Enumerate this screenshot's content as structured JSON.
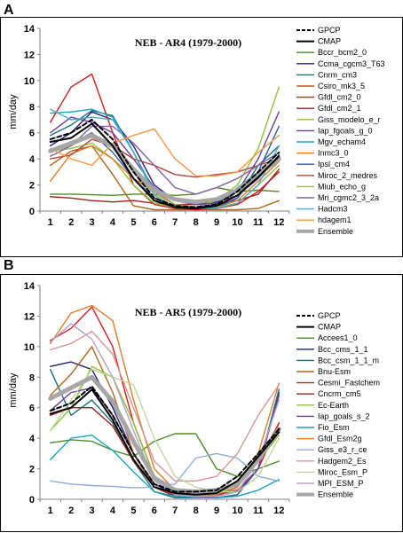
{
  "chart_data": [
    {
      "panel": "A",
      "type": "line",
      "title": "NEB - AR4 (1979-2000)",
      "xlabel": "",
      "ylabel": "mm/day",
      "categories": [
        "1",
        "2",
        "3",
        "4",
        "5",
        "6",
        "7",
        "8",
        "9",
        "10",
        "11",
        "12"
      ],
      "ylim": [
        0,
        14
      ],
      "yticks": [
        0,
        2,
        4,
        6,
        8,
        10,
        12,
        14
      ],
      "grid": false,
      "legend": "right",
      "series": [
        {
          "name": "GPCP",
          "color": "#000000",
          "dash": true,
          "width": 2,
          "values": [
            5.5,
            6.0,
            7.0,
            5.5,
            3.0,
            1.0,
            0.4,
            0.3,
            0.5,
            1.5,
            3.0,
            4.5
          ]
        },
        {
          "name": "CMAP",
          "color": "#000000",
          "width": 2,
          "values": [
            5.3,
            5.6,
            6.7,
            5.0,
            2.5,
            0.8,
            0.3,
            0.2,
            0.4,
            1.2,
            2.6,
            4.2
          ]
        },
        {
          "name": "Bccr_bcm2_0",
          "color": "#4e8a21",
          "width": 1.4,
          "values": [
            1.3,
            1.3,
            1.25,
            1.2,
            1.3,
            1.3,
            1.2,
            1.3,
            1.8,
            1.5,
            1.6,
            1.5
          ]
        },
        {
          "name": "Ccma_cgcm3_T63",
          "color": "#1f1f7a",
          "width": 1.4,
          "values": [
            5.0,
            6.0,
            7.6,
            7.0,
            5.0,
            2.0,
            0.8,
            0.5,
            0.7,
            1.2,
            2.5,
            4.3
          ]
        },
        {
          "name": "Cnrm_cm3",
          "color": "#1f6f7a",
          "width": 1.4,
          "values": [
            5.8,
            6.6,
            7.7,
            7.3,
            4.5,
            1.5,
            0.5,
            0.2,
            0.3,
            1.0,
            3.5,
            5.0
          ]
        },
        {
          "name": "Csiro_mk3_5",
          "color": "#b0651f",
          "width": 1.4,
          "values": [
            3.5,
            4.6,
            5.0,
            2.8,
            0.4,
            0.1,
            0.1,
            0.1,
            0.1,
            0.1,
            0.2,
            0.8
          ]
        },
        {
          "name": "Gfdl_cm2_0",
          "color": "#d61c1c",
          "width": 1.4,
          "values": [
            6.8,
            9.5,
            10.5,
            6.0,
            2.0,
            0.5,
            0.2,
            0.1,
            0.2,
            0.5,
            1.5,
            3.0
          ]
        },
        {
          "name": "Gfdl_cm2_1",
          "color": "#a02020",
          "width": 1.4,
          "values": [
            1.1,
            1.0,
            0.8,
            0.7,
            0.8,
            0.6,
            0.5,
            0.5,
            0.6,
            0.8,
            1.3,
            3.2
          ]
        },
        {
          "name": "Giss_modelo_e_r",
          "color": "#8ec23b",
          "width": 1.4,
          "values": [
            4.6,
            4.8,
            5.2,
            4.0,
            2.0,
            0.6,
            0.3,
            0.3,
            0.8,
            2.0,
            4.8,
            9.5
          ]
        },
        {
          "name": "Iap_fgoals_g_0",
          "color": "#6c3b9e",
          "width": 1.4,
          "values": [
            6.0,
            7.2,
            6.8,
            6.0,
            4.0,
            1.8,
            0.8,
            0.5,
            0.6,
            1.5,
            4.0,
            7.6
          ]
        },
        {
          "name": "Mgv_echam4",
          "color": "#1aa3c4",
          "width": 1.4,
          "values": [
            7.5,
            7.6,
            7.8,
            7.2,
            4.5,
            1.5,
            0.5,
            0.3,
            0.5,
            1.8,
            3.0,
            4.0
          ]
        },
        {
          "name": "Inmc3_0",
          "color": "#e07b2a",
          "width": 1.4,
          "values": [
            2.3,
            4.4,
            5.0,
            4.0,
            2.5,
            1.5,
            0.5,
            0.3,
            0.3,
            0.8,
            2.3,
            3.8
          ]
        },
        {
          "name": "Ipsl_cm4",
          "color": "#2a5aa8",
          "width": 1.4,
          "values": [
            4.5,
            5.2,
            6.0,
            4.5,
            2.5,
            1.0,
            0.3,
            0.2,
            0.3,
            1.0,
            3.0,
            6.5
          ]
        },
        {
          "name": "Miroc_2_medres",
          "color": "#b5443f",
          "width": 1.4,
          "values": [
            4.0,
            4.3,
            5.5,
            5.0,
            4.0,
            3.5,
            2.8,
            2.6,
            2.8,
            3.0,
            3.5,
            4.0
          ]
        },
        {
          "name": "Miub_echo_g",
          "color": "#9bbb59",
          "width": 1.4,
          "values": [
            4.5,
            5.0,
            5.8,
            5.0,
            3.0,
            1.3,
            0.5,
            0.3,
            0.3,
            0.6,
            2.0,
            3.5
          ]
        },
        {
          "name": "Mri_cgmc2_3_2a",
          "color": "#8064a2",
          "width": 1.4,
          "values": [
            4.2,
            5.0,
            6.5,
            6.5,
            5.2,
            3.5,
            1.8,
            1.3,
            1.8,
            2.5,
            3.5,
            4.5
          ]
        },
        {
          "name": "Hadcm3",
          "color": "#4bacc6",
          "width": 1.4,
          "values": [
            7.8,
            7.0,
            7.2,
            7.0,
            4.5,
            1.2,
            0.3,
            0.2,
            0.2,
            0.6,
            2.0,
            5.0
          ]
        },
        {
          "name": "hdagem1",
          "color": "#f79646",
          "width": 1.4,
          "values": [
            4.8,
            4.0,
            3.5,
            5.2,
            5.8,
            6.3,
            4.0,
            2.7,
            2.7,
            3.0,
            4.5,
            5.8
          ]
        },
        {
          "name": "Ensemble",
          "color": "#a6a6a6",
          "width": 5,
          "values": [
            4.6,
            5.2,
            5.8,
            5.0,
            3.2,
            1.6,
            0.9,
            0.7,
            0.9,
            1.6,
            2.8,
            4.0
          ]
        }
      ]
    },
    {
      "panel": "B",
      "type": "line",
      "title": "NEB - AR5 (1979-2000)",
      "xlabel": "",
      "ylabel": "mm/day",
      "categories": [
        "1",
        "2",
        "3",
        "4",
        "5",
        "6",
        "7",
        "8",
        "9",
        "10",
        "11",
        "12"
      ],
      "ylim": [
        0,
        14
      ],
      "yticks": [
        0,
        2,
        4,
        6,
        8,
        10,
        12,
        14
      ],
      "grid": false,
      "legend": "right",
      "series": [
        {
          "name": "GPCP",
          "color": "#000000",
          "dash": true,
          "width": 2,
          "values": [
            5.8,
            6.3,
            7.4,
            5.5,
            3.0,
            1.0,
            0.5,
            0.5,
            0.6,
            1.5,
            3.0,
            4.6
          ]
        },
        {
          "name": "CMAP",
          "color": "#000000",
          "width": 2,
          "values": [
            5.6,
            6.0,
            7.2,
            5.2,
            2.6,
            0.8,
            0.4,
            0.3,
            0.4,
            1.2,
            2.8,
            4.4
          ]
        },
        {
          "name": "Accees1_0",
          "color": "#4e8a21",
          "width": 1.4,
          "values": [
            3.7,
            3.9,
            3.8,
            3.2,
            2.8,
            3.8,
            4.3,
            4.3,
            2.0,
            1.5,
            2.0,
            2.5
          ]
        },
        {
          "name": "Bcc_cms_1_1",
          "color": "#1f1f7a",
          "width": 1.4,
          "values": [
            8.7,
            9.0,
            8.5,
            6.0,
            3.0,
            0.8,
            0.2,
            0.1,
            0.1,
            0.3,
            2.0,
            7.0
          ]
        },
        {
          "name": "Bcc_csm_1_1_m",
          "color": "#1f6f7a",
          "width": 1.4,
          "values": [
            8.5,
            5.5,
            6.5,
            5.0,
            2.5,
            0.5,
            0.1,
            0.1,
            0.1,
            0.3,
            2.0,
            7.2
          ]
        },
        {
          "name": "Bnu-Esm",
          "color": "#b0651f",
          "width": 1.4,
          "values": [
            6.8,
            8.2,
            10.0,
            7.0,
            3.0,
            0.8,
            0.3,
            0.2,
            0.3,
            0.8,
            2.5,
            5.0
          ]
        },
        {
          "name": "Cesmi_Fastchem",
          "color": "#d61c1c",
          "width": 1.4,
          "values": [
            10.4,
            11.2,
            12.6,
            10.0,
            5.0,
            1.5,
            0.5,
            0.3,
            0.3,
            0.6,
            2.0,
            5.0
          ]
        },
        {
          "name": "Cncrm_cm5",
          "color": "#a02020",
          "width": 1.4,
          "values": [
            5.5,
            6.0,
            6.0,
            4.8,
            2.5,
            0.8,
            0.2,
            0.1,
            0.2,
            0.8,
            3.0,
            4.5
          ]
        },
        {
          "name": "Ec-Earth",
          "color": "#8ec23b",
          "width": 1.4,
          "values": [
            4.5,
            6.0,
            8.7,
            8.0,
            5.0,
            1.5,
            0.5,
            0.2,
            0.3,
            1.0,
            2.5,
            4.2
          ]
        },
        {
          "name": "Iap_goals_s_2",
          "color": "#6c3b9e",
          "width": 1.4,
          "values": [
            5.8,
            7.0,
            7.3,
            5.5,
            3.0,
            1.0,
            0.3,
            0.2,
            0.2,
            0.5,
            2.0,
            6.8
          ]
        },
        {
          "name": "Fio_Esm",
          "color": "#1aa3c4",
          "width": 1.4,
          "values": [
            2.6,
            4.0,
            4.2,
            3.2,
            1.8,
            0.5,
            0.2,
            0.1,
            0.1,
            0.2,
            0.6,
            1.3
          ]
        },
        {
          "name": "Gfdl_Esm2g",
          "color": "#e07b2a",
          "width": 1.4,
          "values": [
            10.2,
            12.2,
            12.7,
            11.7,
            6.5,
            2.0,
            0.6,
            0.3,
            0.3,
            0.8,
            3.0,
            7.6
          ]
        },
        {
          "name": "Giss_e3_r_ce",
          "color": "#8ea9db",
          "width": 1.4,
          "values": [
            1.2,
            1.0,
            0.9,
            0.85,
            0.75,
            0.8,
            1.0,
            2.7,
            3.0,
            2.7,
            1.5,
            1.2
          ]
        },
        {
          "name": "Hadgem2_Es",
          "color": "#d99694",
          "width": 1.4,
          "values": [
            9.8,
            10.2,
            11.0,
            9.5,
            6.0,
            2.5,
            1.2,
            1.2,
            1.5,
            3.0,
            5.5,
            7.5
          ]
        },
        {
          "name": "Miroc_Esm_P",
          "color": "#c3d69b",
          "width": 1.4,
          "values": [
            4.5,
            6.5,
            8.5,
            8.0,
            7.5,
            4.0,
            1.5,
            0.8,
            0.5,
            0.5,
            1.5,
            4.0
          ]
        },
        {
          "name": "MPI_ESM_P",
          "color": "#b3a2c7",
          "width": 1.4,
          "values": [
            10.3,
            11.5,
            10.5,
            8.0,
            4.5,
            1.2,
            0.3,
            0.2,
            0.2,
            0.5,
            2.5,
            6.5
          ]
        },
        {
          "name": "Ensemble",
          "color": "#a6a6a6",
          "width": 5,
          "values": [
            6.6,
            7.3,
            8.0,
            6.4,
            3.8,
            1.4,
            0.6,
            0.5,
            0.6,
            1.0,
            2.6,
            4.6
          ]
        }
      ]
    }
  ]
}
